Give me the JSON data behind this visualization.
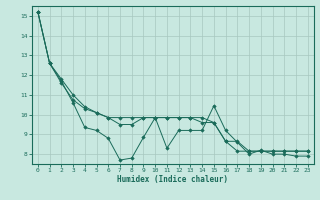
{
  "title": "",
  "xlabel": "Humidex (Indice chaleur)",
  "bg_color": "#c8e8e0",
  "grid_color": "#a8c8c0",
  "line_color": "#1a6b5a",
  "xlim": [
    -0.5,
    23.5
  ],
  "ylim": [
    7.5,
    15.5
  ],
  "yticks": [
    8,
    9,
    10,
    11,
    12,
    13,
    14,
    15
  ],
  "xticks": [
    0,
    1,
    2,
    3,
    4,
    5,
    6,
    7,
    8,
    9,
    10,
    11,
    12,
    13,
    14,
    15,
    16,
    17,
    18,
    19,
    20,
    21,
    22,
    23
  ],
  "series": [
    [
      15.2,
      12.6,
      11.7,
      10.6,
      9.35,
      9.2,
      8.8,
      7.7,
      7.8,
      8.85,
      9.85,
      8.3,
      9.2,
      9.2,
      9.2,
      10.45,
      9.2,
      8.6,
      8.0,
      8.2,
      8.0,
      8.0,
      7.9,
      7.9
    ],
    [
      15.2,
      12.6,
      11.6,
      10.75,
      10.3,
      10.1,
      9.85,
      9.85,
      9.85,
      9.85,
      9.85,
      9.85,
      9.85,
      9.85,
      9.85,
      9.6,
      8.65,
      8.15,
      8.15,
      8.15,
      8.15,
      8.15,
      8.15,
      8.15
    ],
    [
      15.2,
      12.6,
      11.8,
      11.0,
      10.4,
      10.1,
      9.85,
      9.5,
      9.5,
      9.85,
      9.85,
      9.85,
      9.85,
      9.85,
      9.6,
      9.6,
      8.65,
      8.65,
      8.15,
      8.15,
      8.15,
      8.15,
      8.15,
      8.15
    ]
  ],
  "marker": "D",
  "markersize": 1.8,
  "lw": 0.7,
  "xlabel_fontsize": 5.5,
  "tick_fontsize": 4.5
}
